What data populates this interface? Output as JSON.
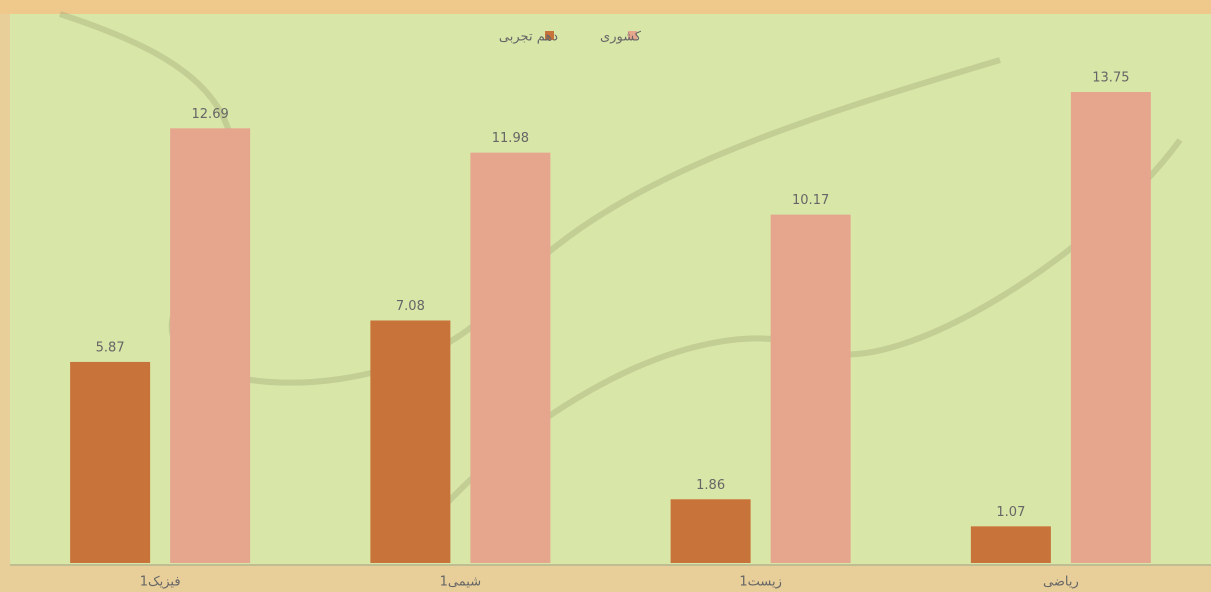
{
  "chart_data": {
    "type": "bar",
    "categories": [
      "فیزیک1",
      "شیمی1",
      "زیست1",
      "ریاضی"
    ],
    "series": [
      {
        "name": "دهم تجربی",
        "color": "#c8733a",
        "values": [
          5.87,
          7.08,
          1.86,
          1.07
        ]
      },
      {
        "name": "کشوری",
        "color": "#e6a68e",
        "values": [
          12.69,
          11.98,
          10.17,
          13.75
        ]
      }
    ]
  }
}
